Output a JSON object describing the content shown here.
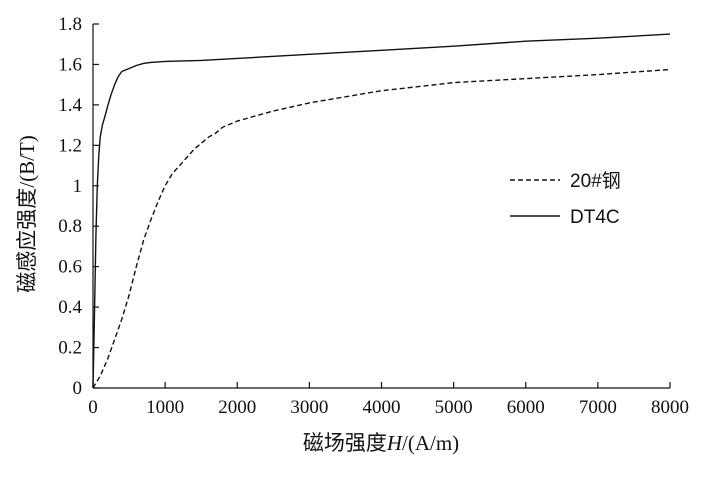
{
  "chart_data": {
    "type": "line",
    "xlabel_prefix": "磁场强度",
    "xlabel_var": "H",
    "xlabel_suffix": "/(A/m)",
    "ylabel": "磁感应强度/(B/T)",
    "xlim": [
      0,
      8000
    ],
    "ylim": [
      0,
      1.8
    ],
    "x_ticks": [
      0,
      1000,
      2000,
      3000,
      4000,
      5000,
      6000,
      7000,
      8000
    ],
    "x_tick_labels": [
      "0",
      "1000",
      "2000",
      "3000",
      "4000",
      "5000",
      "6000",
      "7000",
      "8000"
    ],
    "y_ticks": [
      0,
      0.2,
      0.4,
      0.6,
      0.8,
      1,
      1.2,
      1.4,
      1.6,
      1.8
    ],
    "y_tick_labels": [
      "0",
      "0.2",
      "0.4",
      "0.6",
      "0.8",
      "1",
      "1.2",
      "1.4",
      "1.6",
      "1.8"
    ],
    "grid": false,
    "legend_position": "right-center",
    "series": [
      {
        "name": "20#钢",
        "style": "dashed",
        "color": "#111111",
        "points": [
          [
            0,
            0
          ],
          [
            100,
            0.06
          ],
          [
            200,
            0.14
          ],
          [
            300,
            0.24
          ],
          [
            400,
            0.34
          ],
          [
            500,
            0.46
          ],
          [
            600,
            0.6
          ],
          [
            700,
            0.73
          ],
          [
            800,
            0.83
          ],
          [
            900,
            0.92
          ],
          [
            1000,
            1.0
          ],
          [
            1100,
            1.06
          ],
          [
            1200,
            1.1
          ],
          [
            1300,
            1.14
          ],
          [
            1400,
            1.18
          ],
          [
            1500,
            1.21
          ],
          [
            1600,
            1.24
          ],
          [
            1700,
            1.26
          ],
          [
            1800,
            1.29
          ],
          [
            2000,
            1.32
          ],
          [
            2200,
            1.34
          ],
          [
            2500,
            1.37
          ],
          [
            3000,
            1.41
          ],
          [
            3500,
            1.44
          ],
          [
            4000,
            1.47
          ],
          [
            4500,
            1.49
          ],
          [
            5000,
            1.51
          ],
          [
            6000,
            1.53
          ],
          [
            7000,
            1.55
          ],
          [
            8000,
            1.575
          ]
        ]
      },
      {
        "name": "DT4C",
        "style": "solid",
        "color": "#111111",
        "points": [
          [
            0,
            0
          ],
          [
            20,
            0.35
          ],
          [
            40,
            0.75
          ],
          [
            60,
            1.0
          ],
          [
            80,
            1.15
          ],
          [
            100,
            1.24
          ],
          [
            130,
            1.3
          ],
          [
            170,
            1.35
          ],
          [
            200,
            1.39
          ],
          [
            250,
            1.45
          ],
          [
            300,
            1.5
          ],
          [
            350,
            1.54
          ],
          [
            400,
            1.565
          ],
          [
            500,
            1.58
          ],
          [
            600,
            1.595
          ],
          [
            700,
            1.605
          ],
          [
            800,
            1.61
          ],
          [
            1000,
            1.615
          ],
          [
            1500,
            1.62
          ],
          [
            2000,
            1.63
          ],
          [
            3000,
            1.65
          ],
          [
            4000,
            1.67
          ],
          [
            5000,
            1.69
          ],
          [
            6000,
            1.715
          ],
          [
            7000,
            1.73
          ],
          [
            8000,
            1.75
          ]
        ]
      }
    ]
  }
}
